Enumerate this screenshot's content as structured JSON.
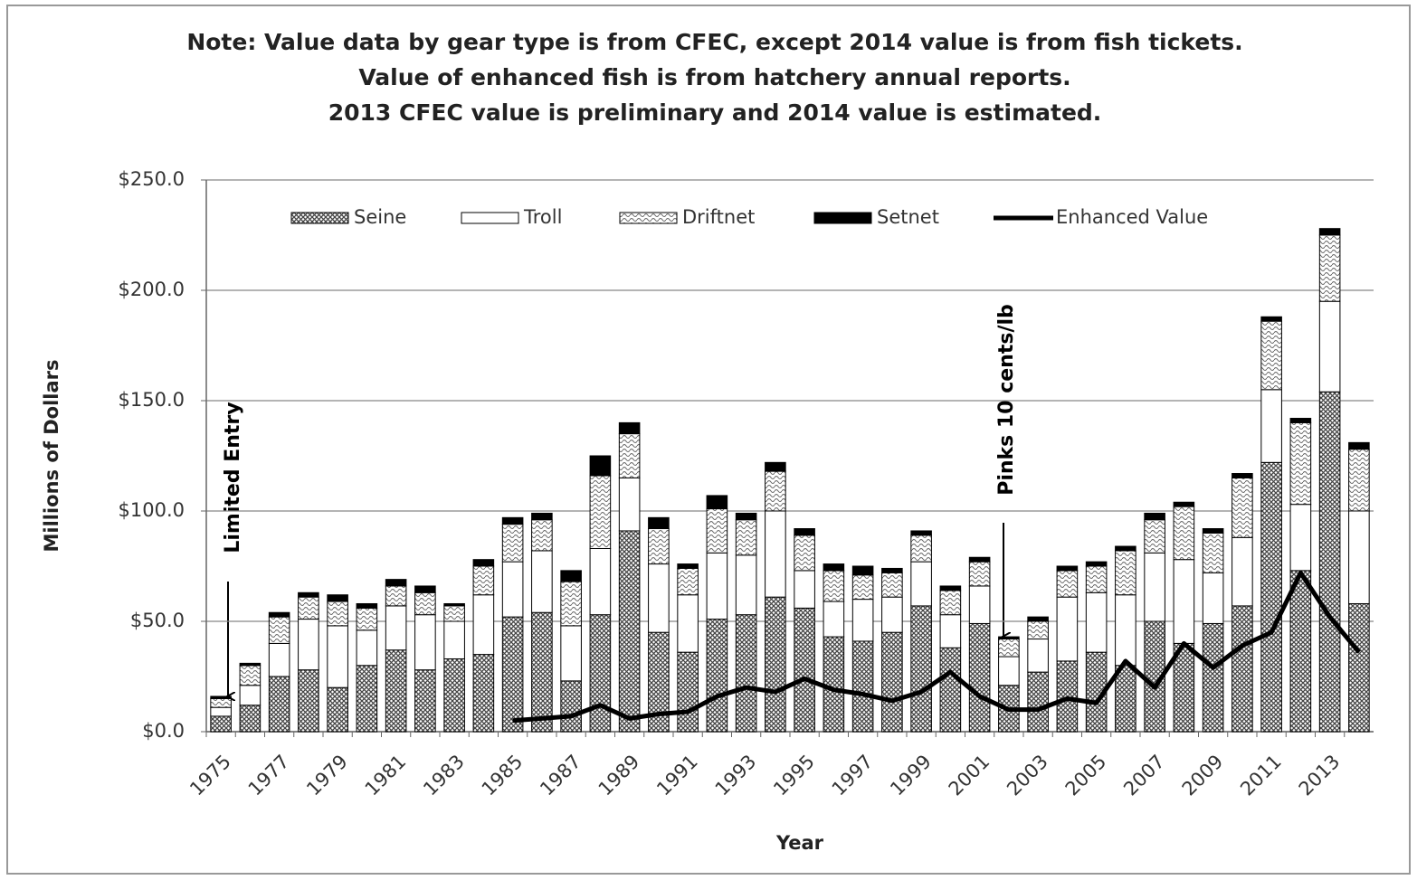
{
  "chart_data": {
    "type": "bar",
    "title_lines": [
      "Note: Value data by gear type is from CFEC, except 2014 value is from fish tickets.",
      "Value of enhanced fish is from hatchery annual reports.",
      "2013 CFEC value is preliminary and 2014 value is estimated."
    ],
    "x_label": "Year",
    "y_label": "Millions of Dollars",
    "annotations": [
      "Limited Entry",
      "Pinks 10 cents/lb"
    ],
    "categories": [
      "1975",
      null,
      "1977",
      null,
      "1979",
      null,
      "1981",
      null,
      "1983",
      null,
      "1985",
      null,
      "1987",
      null,
      "1989",
      null,
      "1991",
      null,
      "1993",
      null,
      "1995",
      null,
      "1997",
      null,
      "1999",
      null,
      "2001",
      null,
      "2003",
      null,
      "2005",
      null,
      "2007",
      null,
      "2009",
      null,
      "2011",
      null,
      "2013",
      null
    ],
    "series": [
      {
        "name": "Seine",
        "color": "#444444",
        "pattern": "crosshatch",
        "values": [
          7,
          12,
          25,
          28,
          20,
          30,
          37,
          28,
          33,
          35,
          52,
          54,
          23,
          53,
          91,
          45,
          36,
          51,
          53,
          61,
          56,
          43,
          41,
          45,
          57,
          38,
          49,
          21,
          27,
          32,
          36,
          30,
          50,
          40,
          49,
          57,
          122,
          73,
          154,
          58
        ]
      },
      {
        "name": "Troll",
        "color": "#ffffff",
        "pattern": "solid",
        "values": [
          4,
          9,
          15,
          23,
          28,
          16,
          20,
          25,
          17,
          27,
          25,
          28,
          25,
          30,
          24,
          31,
          26,
          30,
          27,
          39,
          17,
          16,
          19,
          16,
          20,
          15,
          17,
          13,
          15,
          29,
          27,
          32,
          31,
          38,
          23,
          31,
          33,
          30,
          41,
          42
        ]
      },
      {
        "name": "Driftnet",
        "color": "#666666",
        "pattern": "wave",
        "values": [
          4,
          9,
          12,
          10,
          11,
          10,
          9,
          10,
          7,
          13,
          17,
          14,
          20,
          33,
          20,
          16,
          12,
          20,
          16,
          18,
          16,
          14,
          11,
          11,
          12,
          11,
          11,
          8,
          8,
          12,
          12,
          20,
          15,
          24,
          18,
          27,
          31,
          37,
          30,
          28
        ]
      },
      {
        "name": "Setnet",
        "color": "#000000",
        "pattern": "solid",
        "values": [
          1,
          1,
          2,
          2,
          3,
          2,
          3,
          3,
          1,
          3,
          3,
          3,
          5,
          9,
          5,
          5,
          2,
          6,
          3,
          4,
          3,
          3,
          4,
          2,
          2,
          2,
          2,
          1,
          2,
          2,
          2,
          2,
          3,
          2,
          2,
          2,
          2,
          2,
          3,
          3
        ]
      },
      {
        "name": "Enhanced Value",
        "color": "#000000",
        "kind": "line",
        "values": [
          null,
          null,
          null,
          null,
          null,
          null,
          null,
          null,
          null,
          null,
          5,
          6,
          7,
          12,
          6,
          8,
          9,
          16,
          20,
          18,
          24,
          19,
          17,
          14,
          18,
          27,
          16,
          10,
          10,
          15,
          13,
          32,
          20,
          40,
          29,
          39,
          45,
          72,
          52,
          36
        ]
      }
    ],
    "ylim": [
      0,
      250
    ],
    "yticks": [
      {
        "value": 0,
        "label": "$0.0"
      },
      {
        "value": 50,
        "label": "$50.0"
      },
      {
        "value": 100,
        "label": "$100.0"
      },
      {
        "value": 150,
        "label": "$150.0"
      },
      {
        "value": 200,
        "label": "$200.0"
      },
      {
        "value": 250,
        "label": "$250.0"
      }
    ],
    "grid": true
  }
}
